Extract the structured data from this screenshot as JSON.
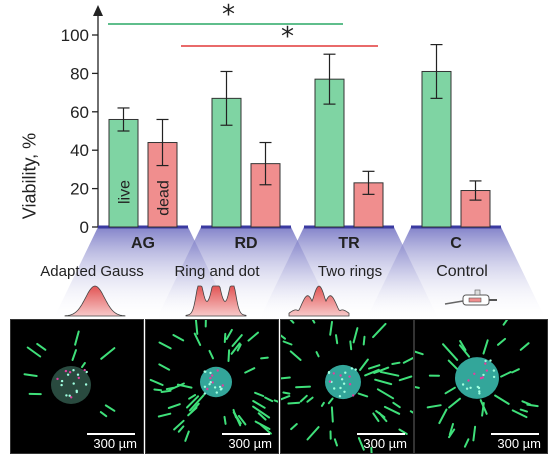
{
  "chart_data": {
    "type": "bar",
    "ylabel": "Viability, %",
    "ylim": [
      0,
      100
    ],
    "yticks": [
      "0",
      "20",
      "40",
      "60",
      "80",
      "100"
    ],
    "categories": [
      "AG",
      "RD",
      "TR",
      "C"
    ],
    "series": [
      {
        "name": "live",
        "color": "#7fd4a3",
        "values": [
          56,
          67,
          77,
          81
        ],
        "errors": [
          6,
          14,
          13,
          14
        ]
      },
      {
        "name": "dead",
        "color": "#f08e8e",
        "values": [
          44,
          33,
          23,
          19
        ],
        "errors": [
          12,
          11,
          6,
          5
        ]
      }
    ],
    "significance": [
      {
        "from": "AG",
        "to": "TR",
        "color": "#2aa866",
        "marker": "*"
      },
      {
        "from": "RD",
        "to": "TR",
        "color": "#e23838",
        "marker": "*"
      }
    ]
  },
  "groups": [
    {
      "code": "AG",
      "name": "Adapted Gauss",
      "profile": "gauss-profile"
    },
    {
      "code": "RD",
      "name": "Ring and dot",
      "profile": "ring-dot-profile"
    },
    {
      "code": "TR",
      "name": "Two rings",
      "profile": "two-rings-profile"
    },
    {
      "code": "C",
      "name": "Control",
      "profile": "pipette-icon"
    }
  ],
  "scale_label": "300 µm",
  "colors": {
    "funnel": "#9b9bd0",
    "baseline": "#3a3aa0",
    "cells_green": "#3fe07a",
    "cells_cyan": "#40d0c0"
  }
}
